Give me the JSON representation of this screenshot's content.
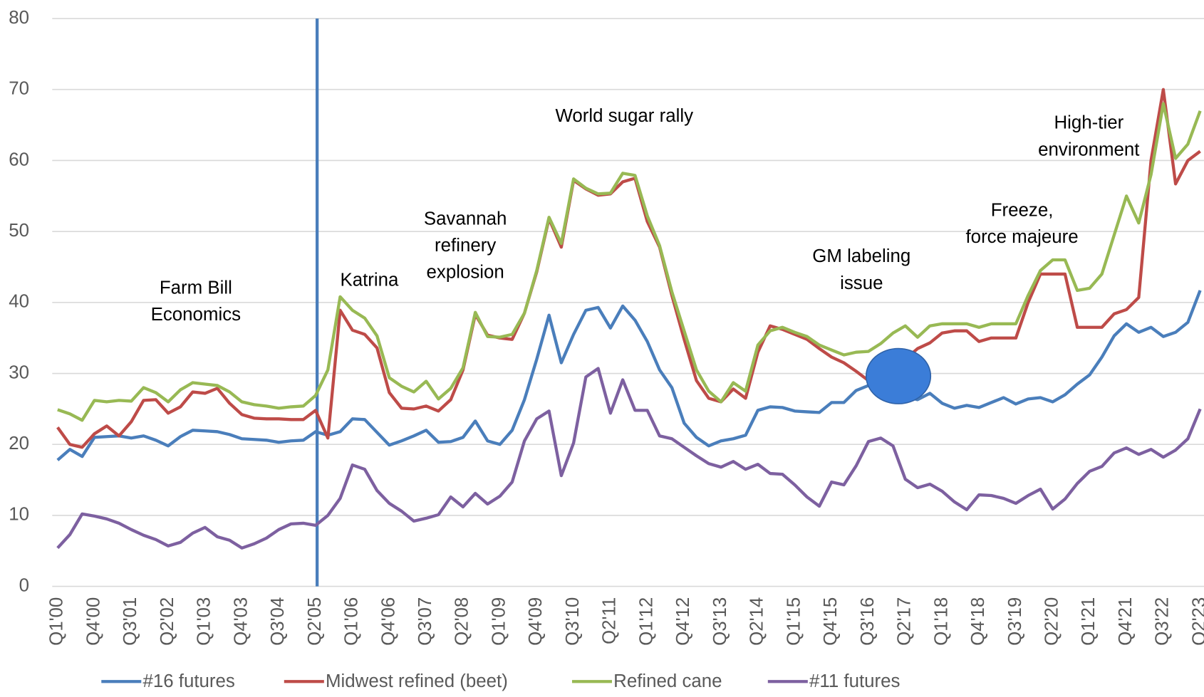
{
  "chart_data": {
    "type": "line",
    "categories": [
      "Q1'00",
      null,
      null,
      "Q4'00",
      null,
      null,
      "Q3'01",
      null,
      null,
      "Q2'02",
      null,
      null,
      "Q1'03",
      null,
      null,
      "Q4'03",
      null,
      null,
      "Q3'04",
      null,
      null,
      "Q2'05",
      null,
      null,
      "Q1'06",
      null,
      null,
      "Q4'06",
      null,
      null,
      "Q3'07",
      null,
      null,
      "Q2'08",
      null,
      null,
      "Q1'09",
      null,
      null,
      "Q4'09",
      null,
      null,
      "Q3'10",
      null,
      null,
      "Q2'11",
      null,
      null,
      "Q1'12",
      null,
      null,
      "Q4'12",
      null,
      null,
      "Q3'13",
      null,
      null,
      "Q2'14",
      null,
      null,
      "Q1'15",
      null,
      null,
      "Q4'15",
      null,
      null,
      "Q3'16",
      null,
      null,
      "Q2'17",
      null,
      null,
      "Q1'18",
      null,
      null,
      "Q4'18",
      null,
      null,
      "Q3'19",
      null,
      null,
      "Q2'20",
      null,
      null,
      "Q1'21",
      null,
      null,
      "Q4'21",
      null,
      null,
      "Q3'22",
      null,
      null,
      "Q2'23"
    ],
    "series": [
      {
        "name": "#16 futures",
        "color": "#4a7ebb",
        "values": [
          17.8,
          19.3,
          18.3,
          21,
          21.1,
          21.2,
          20.9,
          21.2,
          20.6,
          19.8,
          21.1,
          22,
          21.9,
          21.8,
          21.4,
          20.8,
          20.7,
          20.6,
          20.3,
          20.5,
          20.6,
          21.8,
          21.3,
          21.8,
          23.6,
          23.5,
          21.7,
          19.9,
          20.5,
          21.2,
          22,
          20.3,
          20.4,
          21,
          23.3,
          20.5,
          20,
          22,
          26.3,
          32,
          38.2,
          31.5,
          35.5,
          38.9,
          39.3,
          36.4,
          39.5,
          37.5,
          34.5,
          30.5,
          28,
          23,
          21,
          19.8,
          20.5,
          20.8,
          21.3,
          24.8,
          25.3,
          25.2,
          24.7,
          24.6,
          24.5,
          25.9,
          25.9,
          27.6,
          28.3,
          29,
          28.5,
          26.8,
          26.3,
          27.2,
          25.8,
          25.1,
          25.5,
          25.2,
          25.9,
          26.6,
          25.7,
          26.4,
          26.6,
          26,
          27,
          28.5,
          29.8,
          32.3,
          35.3,
          37,
          35.8,
          36.5,
          35.2,
          35.8,
          37.2,
          41.7
        ]
      },
      {
        "name": "Midwest refined (beet)",
        "color": "#be4b48",
        "values": [
          22.4,
          20,
          19.6,
          21.5,
          22.6,
          21.2,
          23.2,
          26.2,
          26.3,
          24.4,
          25.3,
          27.4,
          27.2,
          27.9,
          25.8,
          24.2,
          23.7,
          23.6,
          23.6,
          23.5,
          23.5,
          24.8,
          20.9,
          38.9,
          36.1,
          35.5,
          33.6,
          27.3,
          25.1,
          25,
          25.4,
          24.7,
          26.3,
          30.5,
          38.3,
          35.4,
          35,
          34.8,
          38.5,
          44.3,
          51.8,
          47.8,
          57.2,
          56,
          55.1,
          55.3,
          57,
          57.5,
          51.4,
          47.8,
          41,
          34.8,
          29,
          26.5,
          26,
          27.8,
          26.5,
          33,
          36.7,
          36.2,
          35.5,
          34.8,
          33.5,
          32.3,
          31.5,
          30.3,
          29,
          28.5,
          29,
          32,
          33.5,
          34.3,
          35.7,
          36,
          36,
          34.5,
          35,
          35,
          35,
          40,
          44,
          44,
          44,
          36.5,
          36.5,
          36.5,
          38.4,
          39,
          40.7,
          60,
          70,
          56.7,
          60,
          61.3
        ]
      },
      {
        "name": "Refined cane",
        "color": "#98b954",
        "values": [
          24.9,
          24.3,
          23.4,
          26.2,
          26,
          26.2,
          26.1,
          28,
          27.3,
          26,
          27.7,
          28.7,
          28.5,
          28.3,
          27.4,
          26,
          25.6,
          25.4,
          25.1,
          25.3,
          25.4,
          26.9,
          30.5,
          40.8,
          38.9,
          37.8,
          35.3,
          29.4,
          28.2,
          27.4,
          28.9,
          26.4,
          27.9,
          30.8,
          38.6,
          35.2,
          35.1,
          35.5,
          38.5,
          44.5,
          52,
          48.3,
          57.4,
          56.1,
          55.3,
          55.4,
          58.2,
          57.9,
          52.2,
          48,
          41.5,
          36,
          30.5,
          27.5,
          26,
          28.7,
          27.5,
          34,
          36,
          36.5,
          35.8,
          35.2,
          34,
          33.3,
          32.6,
          33,
          33.1,
          34.2,
          35.7,
          36.7,
          35.1,
          36.7,
          37,
          37,
          37,
          36.5,
          37,
          37,
          37,
          41,
          44.5,
          46,
          46,
          41.7,
          42,
          44,
          49.5,
          55,
          51.2,
          58,
          68,
          60.3,
          62.3,
          67
        ]
      },
      {
        "name": "#11 futures",
        "color": "#7d60a0",
        "values": [
          5.4,
          7.3,
          10.2,
          9.9,
          9.5,
          8.9,
          8,
          7.2,
          6.6,
          5.7,
          6.2,
          7.5,
          8.3,
          7,
          6.5,
          5.4,
          6,
          6.8,
          8,
          8.8,
          8.9,
          8.6,
          10,
          12.4,
          17.1,
          16.5,
          13.5,
          11.7,
          10.6,
          9.2,
          9.6,
          10.1,
          12.6,
          11.2,
          13.1,
          11.6,
          12.7,
          14.7,
          20.5,
          23.6,
          24.7,
          15.6,
          20.2,
          29.5,
          30.7,
          24.4,
          29.1,
          24.8,
          24.8,
          21.2,
          20.8,
          19.6,
          18.4,
          17.3,
          16.8,
          17.6,
          16.5,
          17.2,
          15.9,
          15.8,
          14.3,
          12.6,
          11.3,
          14.7,
          14.3,
          17,
          20.4,
          20.9,
          19.8,
          15.1,
          13.9,
          14.4,
          13.4,
          11.9,
          10.8,
          12.9,
          12.8,
          12.4,
          11.7,
          12.8,
          13.7,
          10.9,
          12.3,
          14.5,
          16.2,
          16.9,
          18.8,
          19.5,
          18.6,
          19.3,
          18.2,
          19.2,
          20.8,
          25
        ]
      }
    ],
    "annotations": [
      {
        "lines": [
          "Farm Bill",
          "Economics"
        ]
      },
      {
        "lines": [
          "Katrina"
        ]
      },
      {
        "lines": [
          "Savannah",
          "refinery",
          "explosion"
        ]
      },
      {
        "lines": [
          "World sugar rally"
        ]
      },
      {
        "lines": [
          "GM labeling",
          "issue"
        ]
      },
      {
        "lines": [
          "Freeze,",
          "force majeure"
        ]
      },
      {
        "lines": [
          "High-tier",
          "environment"
        ]
      }
    ],
    "ylim": [
      0,
      80
    ],
    "yticks": [
      0,
      10,
      20,
      30,
      40,
      50,
      60,
      70,
      80
    ],
    "grid": true,
    "legend": "bottom"
  }
}
